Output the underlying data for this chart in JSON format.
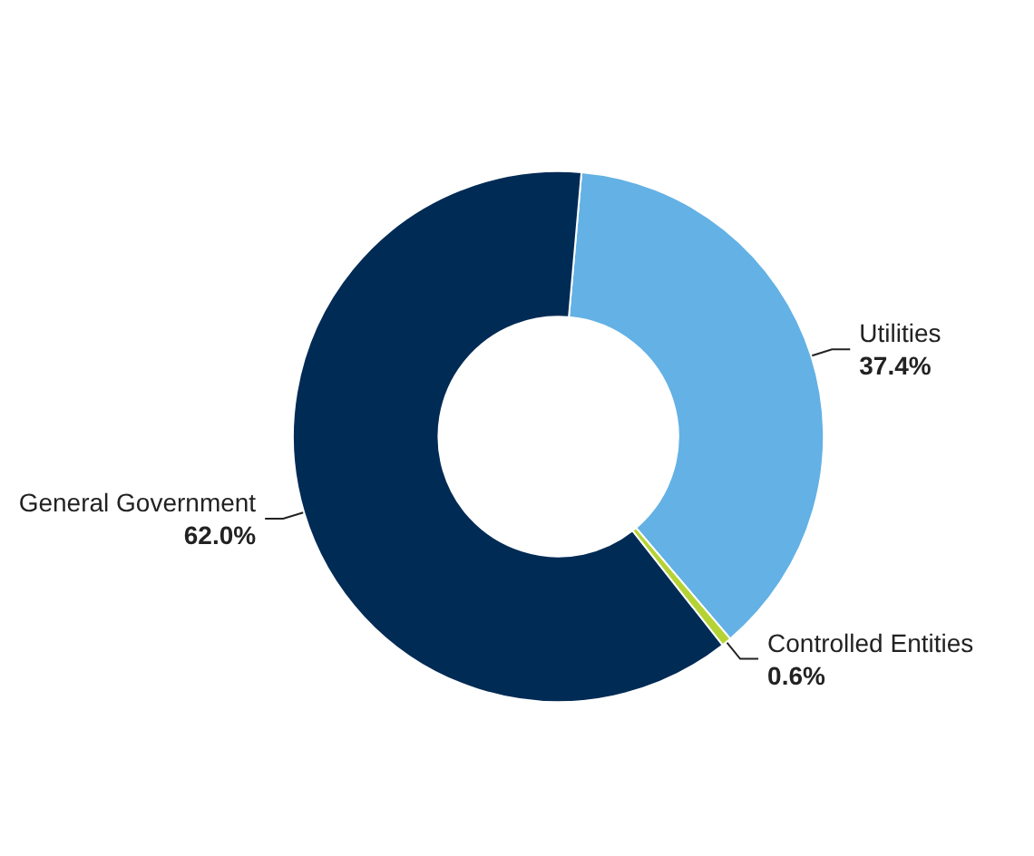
{
  "chart_data": {
    "type": "donut",
    "categories": [
      "Utilities",
      "Controlled Entities",
      "General Government"
    ],
    "values": [
      37.4,
      0.6,
      62.0
    ],
    "colors": [
      "#63b1e5",
      "#b5d334",
      "#002b55"
    ],
    "value_labels": [
      "37.4%",
      "0.6%",
      "62.0%"
    ],
    "legend": false
  }
}
